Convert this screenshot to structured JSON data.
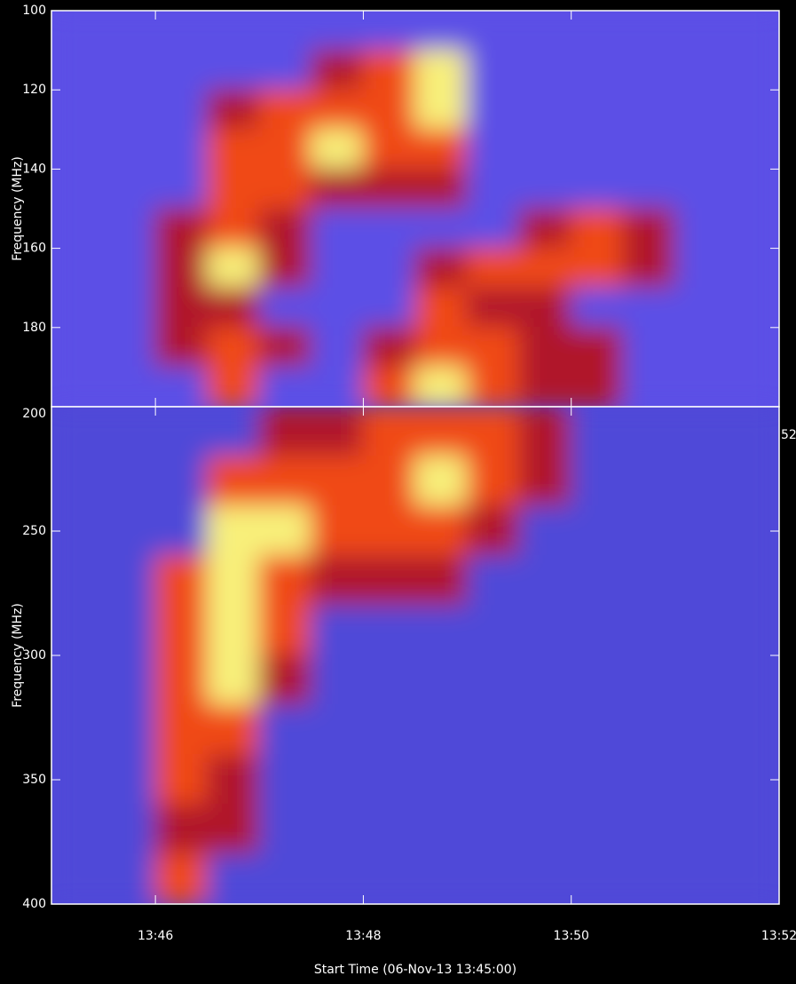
{
  "chart_data": [
    {
      "type": "heatmap",
      "ylabel": "Frequency (MHz)",
      "y_inverted": true,
      "xlim": [
        0,
        7
      ],
      "ylim": [
        100,
        200
      ],
      "yticks": [
        100,
        120,
        140,
        160,
        180
      ],
      "x_edges": [
        0,
        0.5,
        1,
        1.5,
        2,
        2.5,
        3,
        3.5,
        4,
        4.5,
        5,
        5.5,
        6,
        6.5,
        7
      ],
      "y_edges": [
        100,
        110,
        120,
        130,
        140,
        150,
        160,
        170,
        180,
        190,
        200
      ],
      "level_colors": [
        "#5b4fe6",
        "#b0182a",
        "#f04818",
        "#f8f07a"
      ],
      "z": [
        [
          0,
          0,
          0,
          0,
          0,
          0,
          0,
          0,
          0,
          0,
          0,
          0,
          0,
          0
        ],
        [
          0,
          0,
          0,
          0,
          0,
          1,
          2,
          3,
          0,
          0,
          0,
          0,
          0,
          0
        ],
        [
          0,
          0,
          0,
          1,
          2,
          2,
          2,
          3,
          0,
          0,
          0,
          0,
          0,
          0
        ],
        [
          0,
          0,
          0,
          2,
          2,
          3,
          2,
          2,
          0,
          0,
          0,
          0,
          0,
          0
        ],
        [
          0,
          0,
          0,
          2,
          2,
          1,
          1,
          1,
          0,
          0,
          0,
          0,
          0,
          0
        ],
        [
          0,
          0,
          1,
          2,
          1,
          0,
          0,
          0,
          0,
          1,
          2,
          1,
          0,
          0
        ],
        [
          0,
          0,
          1,
          3,
          1,
          0,
          0,
          1,
          2,
          2,
          2,
          1,
          0,
          0
        ],
        [
          0,
          0,
          1,
          1,
          0,
          0,
          0,
          2,
          1,
          1,
          0,
          0,
          0,
          0
        ],
        [
          0,
          0,
          1,
          2,
          1,
          0,
          1,
          2,
          2,
          1,
          1,
          0,
          0,
          0
        ],
        [
          0,
          0,
          0,
          2,
          0,
          0,
          2,
          3,
          2,
          1,
          1,
          0,
          0,
          0
        ]
      ],
      "annotation": "52"
    },
    {
      "type": "heatmap",
      "ylabel": "Frequency (MHz)",
      "xlabel": "Start Time (06-Nov-13 13:45:00)",
      "y_inverted": true,
      "xlim": [
        0,
        7
      ],
      "ylim": [
        200,
        400
      ],
      "yticks": [
        200,
        250,
        300,
        350,
        400
      ],
      "xticks": [
        {
          "value": 1,
          "label": "13:46"
        },
        {
          "value": 3,
          "label": "13:48"
        },
        {
          "value": 5,
          "label": "13:50"
        },
        {
          "value": 7,
          "label": "13:52"
        }
      ],
      "x_edges": [
        0,
        0.5,
        1,
        1.5,
        2,
        2.5,
        3,
        3.5,
        4,
        4.5,
        5,
        5.5,
        6,
        6.5,
        7
      ],
      "y_edges": [
        200,
        220,
        240,
        260,
        280,
        300,
        320,
        340,
        360,
        380,
        400
      ],
      "level_colors": [
        "#5048d8",
        "#b0182a",
        "#f04818",
        "#f8f07a"
      ],
      "z": [
        [
          0,
          0,
          0,
          0,
          1,
          1,
          2,
          2,
          2,
          1,
          0,
          0,
          0,
          0
        ],
        [
          0,
          0,
          0,
          2,
          2,
          2,
          2,
          3,
          2,
          1,
          0,
          0,
          0,
          0
        ],
        [
          0,
          0,
          0,
          3,
          3,
          2,
          2,
          2,
          1,
          0,
          0,
          0,
          0,
          0
        ],
        [
          0,
          0,
          2,
          3,
          2,
          1,
          1,
          1,
          0,
          0,
          0,
          0,
          0,
          0
        ],
        [
          0,
          0,
          2,
          3,
          2,
          0,
          0,
          0,
          0,
          0,
          0,
          0,
          0,
          0
        ],
        [
          0,
          0,
          2,
          3,
          1,
          0,
          0,
          0,
          0,
          0,
          0,
          0,
          0,
          0
        ],
        [
          0,
          0,
          2,
          2,
          0,
          0,
          0,
          0,
          0,
          0,
          0,
          0,
          0,
          0
        ],
        [
          0,
          0,
          2,
          1,
          0,
          0,
          0,
          0,
          0,
          0,
          0,
          0,
          0,
          0
        ],
        [
          0,
          0,
          1,
          1,
          0,
          0,
          0,
          0,
          0,
          0,
          0,
          0,
          0,
          0
        ],
        [
          0,
          0,
          2,
          0,
          0,
          0,
          0,
          0,
          0,
          0,
          0,
          0,
          0,
          0
        ]
      ]
    }
  ]
}
